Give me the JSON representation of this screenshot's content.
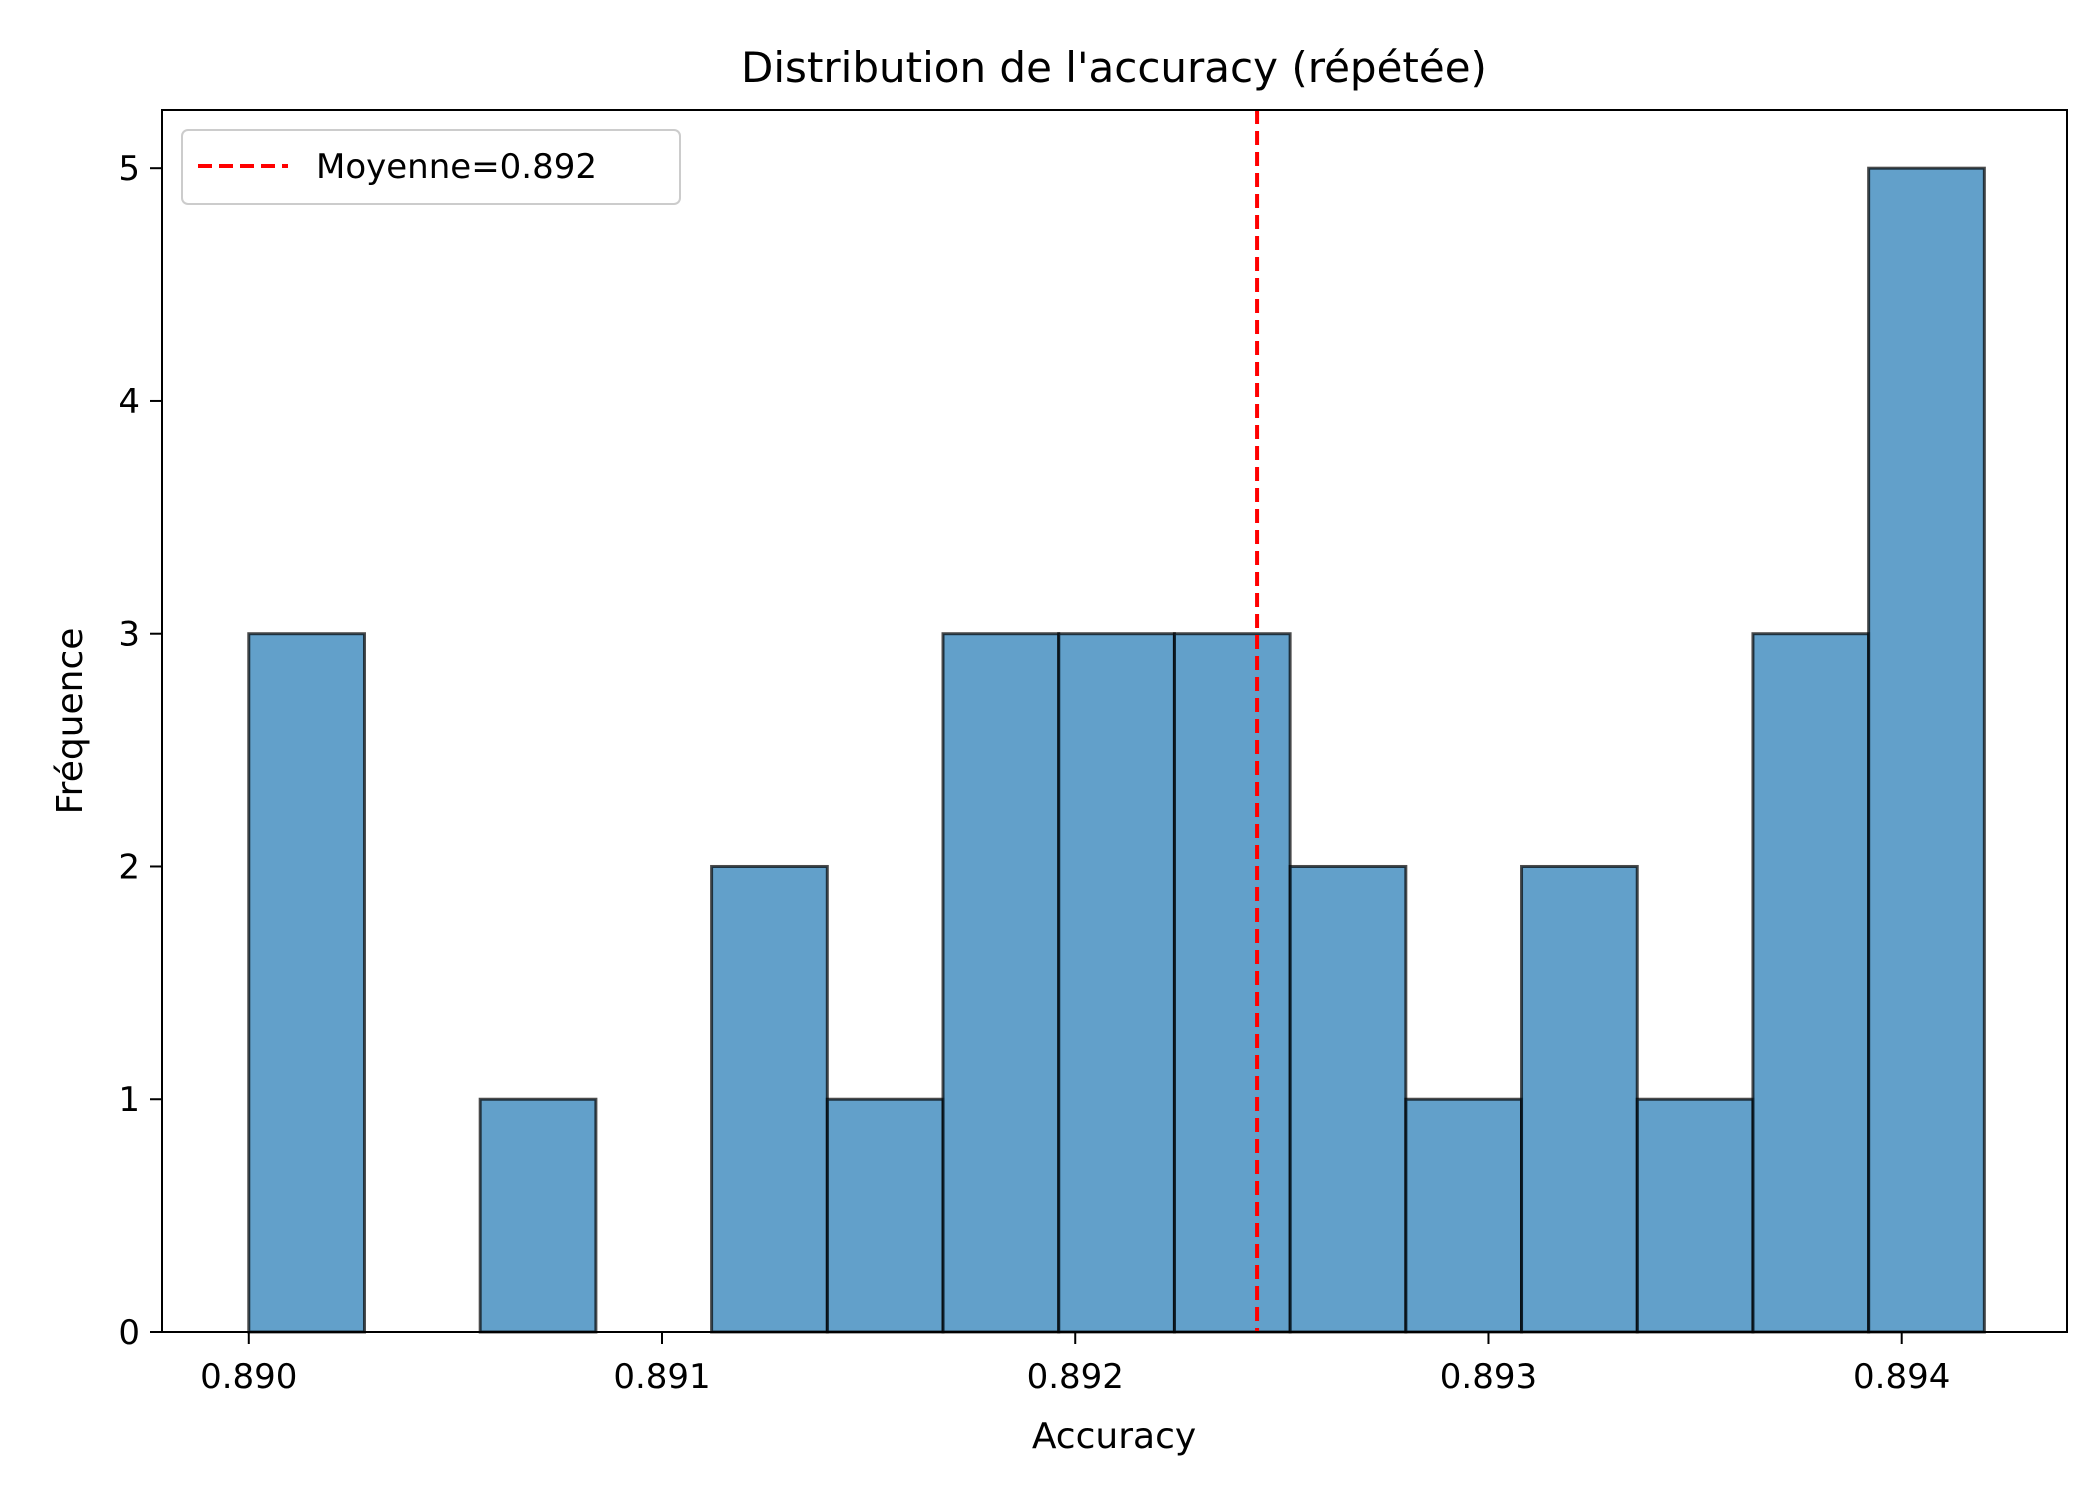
{
  "chart_data": {
    "type": "bar",
    "subtype": "histogram",
    "title": "Distribution de l'accuracy (répétée)",
    "xlabel": "Accuracy",
    "ylabel": "Fréquence",
    "xlim": [
      0.88979,
      0.8944
    ],
    "ylim": [
      0,
      5.25
    ],
    "xticks": [
      {
        "value": 0.89,
        "label": "0.890"
      },
      {
        "value": 0.891,
        "label": "0.891"
      },
      {
        "value": 0.892,
        "label": "0.892"
      },
      {
        "value": 0.893,
        "label": "0.893"
      },
      {
        "value": 0.894,
        "label": "0.894"
      }
    ],
    "yticks": [
      {
        "value": 0,
        "label": "0"
      },
      {
        "value": 1,
        "label": "1"
      },
      {
        "value": 2,
        "label": "2"
      },
      {
        "value": 3,
        "label": "3"
      },
      {
        "value": 4,
        "label": "4"
      },
      {
        "value": 5,
        "label": "5"
      }
    ],
    "bin_start": 0.89,
    "bin_end": 0.8942,
    "counts": [
      3,
      0,
      1,
      0,
      2,
      1,
      3,
      3,
      3,
      2,
      1,
      2,
      1,
      3,
      5
    ],
    "bar_color": "#1f77b4",
    "bar_alpha": 0.7,
    "bar_edge_color": "#000000",
    "mean_line": {
      "value": 0.89244,
      "color": "#ff0000",
      "style": "dashed",
      "label": "Moyenne=0.892"
    },
    "legend": {
      "position": "upper left"
    },
    "grid": false
  }
}
